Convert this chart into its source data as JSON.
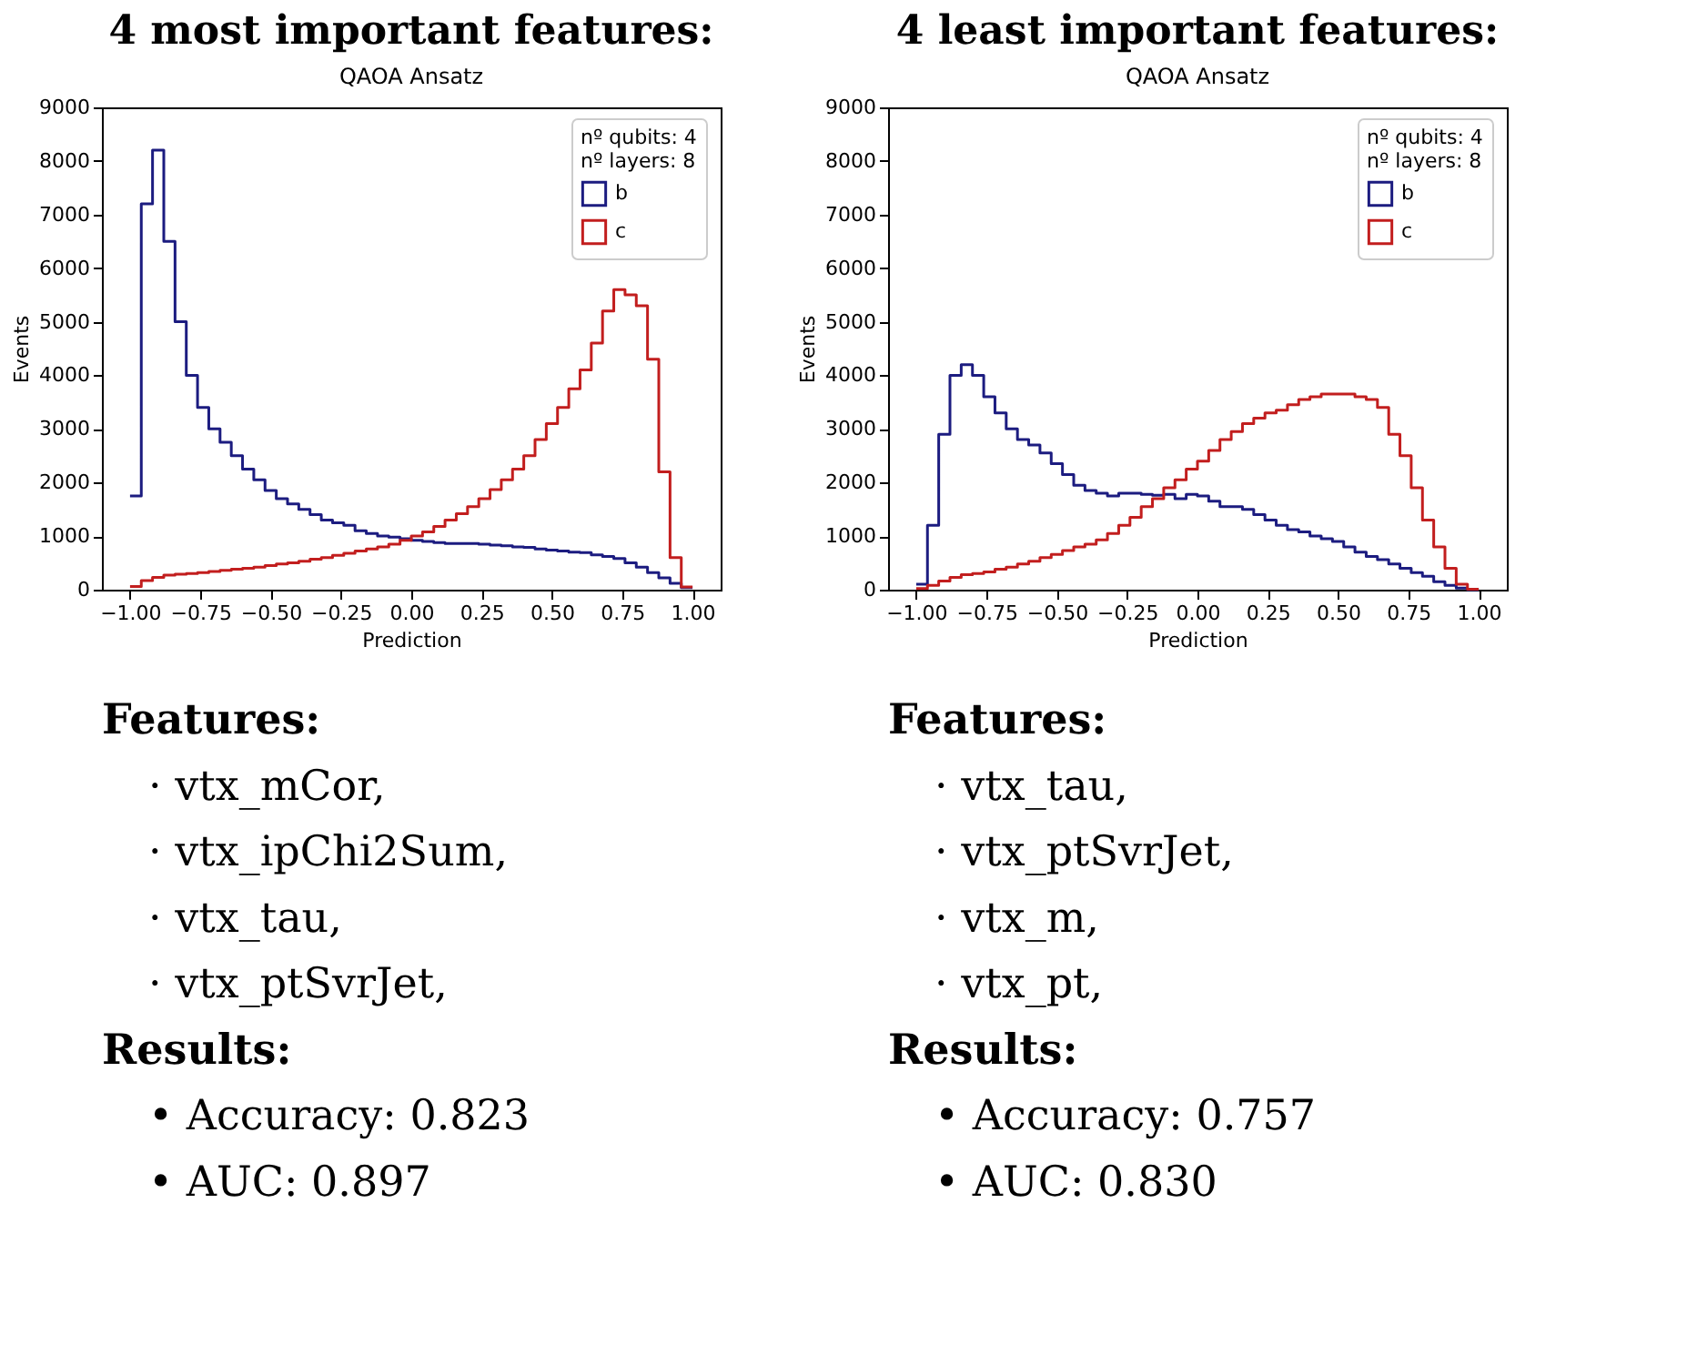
{
  "chart_data": [
    {
      "type": "histogram",
      "title": "4 most important features:",
      "subtitle": "QAOA Ansatz",
      "xlabel": "Prediction",
      "ylabel": "Events",
      "legend_title": "nº qubits: 4\nnº layers: 8",
      "bins": [
        -1.0,
        -0.96,
        -0.92,
        -0.88,
        -0.84,
        -0.8,
        -0.76,
        -0.72,
        -0.68,
        -0.64,
        -0.6,
        -0.56,
        -0.52,
        -0.48,
        -0.44,
        -0.4,
        -0.36,
        -0.32,
        -0.28,
        -0.24,
        -0.2,
        -0.16,
        -0.12,
        -0.08,
        -0.04,
        0.0,
        0.04,
        0.08,
        0.12,
        0.16,
        0.2,
        0.24,
        0.28,
        0.32,
        0.36,
        0.4,
        0.44,
        0.48,
        0.52,
        0.56,
        0.6,
        0.64,
        0.68,
        0.72,
        0.76,
        0.8,
        0.84,
        0.88,
        0.92,
        0.96,
        1.0
      ],
      "series": [
        {
          "name": "b",
          "color": "#1c1c80",
          "values": [
            1750,
            7200,
            8200,
            6500,
            5000,
            4000,
            3400,
            3000,
            2750,
            2500,
            2250,
            2050,
            1850,
            1700,
            1600,
            1500,
            1400,
            1300,
            1250,
            1200,
            1100,
            1050,
            1000,
            980,
            950,
            920,
            900,
            880,
            860,
            860,
            860,
            850,
            830,
            820,
            800,
            790,
            760,
            740,
            720,
            700,
            690,
            650,
            620,
            580,
            500,
            420,
            320,
            220,
            120,
            40
          ]
        },
        {
          "name": "c",
          "color": "#c21e1e",
          "values": [
            60,
            170,
            230,
            270,
            290,
            300,
            320,
            340,
            360,
            380,
            400,
            420,
            450,
            480,
            500,
            530,
            570,
            600,
            640,
            680,
            720,
            760,
            800,
            850,
            920,
            1000,
            1080,
            1180,
            1300,
            1420,
            1550,
            1700,
            1870,
            2050,
            2250,
            2500,
            2800,
            3100,
            3400,
            3750,
            4100,
            4600,
            5200,
            5600,
            5500,
            5300,
            4300,
            2200,
            600,
            50
          ]
        }
      ],
      "xlim": [
        -1.1,
        1.1
      ],
      "ylim": [
        0,
        9000
      ],
      "xticks": [
        {
          "value": -1.0,
          "label": "−1.00"
        },
        {
          "value": -0.75,
          "label": "−0.75"
        },
        {
          "value": -0.5,
          "label": "−0.50"
        },
        {
          "value": -0.25,
          "label": "−0.25"
        },
        {
          "value": 0.0,
          "label": "0.00"
        },
        {
          "value": 0.25,
          "label": "0.25"
        },
        {
          "value": 0.5,
          "label": "0.50"
        },
        {
          "value": 0.75,
          "label": "0.75"
        },
        {
          "value": 1.0,
          "label": "1.00"
        }
      ],
      "yticks": [
        0,
        1000,
        2000,
        3000,
        4000,
        5000,
        6000,
        7000,
        8000,
        9000
      ],
      "grid": false,
      "legend": "top right",
      "annotations": [
        "Features:",
        "· vtx_mCor,",
        "· vtx_ipChi2Sum,",
        "· vtx_tau,",
        "· vtx_ptSvrJet,",
        "Results:",
        "• Accuracy: 0.823",
        "• AUC: 0.897"
      ]
    },
    {
      "type": "histogram",
      "title": "4 least important features:",
      "subtitle": "QAOA Ansatz",
      "xlabel": "Prediction",
      "ylabel": "Events",
      "legend_title": "nº qubits: 4\nnº layers: 8",
      "bins": [
        -1.0,
        -0.96,
        -0.92,
        -0.88,
        -0.84,
        -0.8,
        -0.76,
        -0.72,
        -0.68,
        -0.64,
        -0.6,
        -0.56,
        -0.52,
        -0.48,
        -0.44,
        -0.4,
        -0.36,
        -0.32,
        -0.28,
        -0.24,
        -0.2,
        -0.16,
        -0.12,
        -0.08,
        -0.04,
        0.0,
        0.04,
        0.08,
        0.12,
        0.16,
        0.2,
        0.24,
        0.28,
        0.32,
        0.36,
        0.4,
        0.44,
        0.48,
        0.52,
        0.56,
        0.6,
        0.64,
        0.68,
        0.72,
        0.76,
        0.8,
        0.84,
        0.88,
        0.92,
        0.96,
        1.0
      ],
      "series": [
        {
          "name": "b",
          "color": "#1c1c80",
          "values": [
            100,
            1200,
            2900,
            4000,
            4200,
            4000,
            3600,
            3300,
            3000,
            2800,
            2700,
            2550,
            2350,
            2150,
            1950,
            1850,
            1800,
            1750,
            1800,
            1800,
            1780,
            1760,
            1780,
            1700,
            1780,
            1750,
            1650,
            1550,
            1550,
            1500,
            1400,
            1300,
            1200,
            1120,
            1080,
            1000,
            950,
            900,
            800,
            700,
            620,
            560,
            480,
            400,
            320,
            250,
            150,
            80,
            30,
            0
          ]
        },
        {
          "name": "c",
          "color": "#c21e1e",
          "values": [
            20,
            80,
            160,
            230,
            280,
            300,
            330,
            380,
            420,
            480,
            530,
            600,
            660,
            730,
            800,
            850,
            930,
            1050,
            1200,
            1350,
            1550,
            1700,
            1900,
            2050,
            2250,
            2400,
            2600,
            2800,
            2950,
            3100,
            3200,
            3300,
            3350,
            3450,
            3550,
            3600,
            3650,
            3650,
            3650,
            3600,
            3550,
            3400,
            2900,
            2500,
            1900,
            1300,
            800,
            400,
            100,
            10
          ]
        }
      ],
      "xlim": [
        -1.1,
        1.1
      ],
      "ylim": [
        0,
        9000
      ],
      "xticks": [
        {
          "value": -1.0,
          "label": "−1.00"
        },
        {
          "value": -0.75,
          "label": "−0.75"
        },
        {
          "value": -0.5,
          "label": "−0.50"
        },
        {
          "value": -0.25,
          "label": "−0.25"
        },
        {
          "value": 0.0,
          "label": "0.00"
        },
        {
          "value": 0.25,
          "label": "0.25"
        },
        {
          "value": 0.5,
          "label": "0.50"
        },
        {
          "value": 0.75,
          "label": "0.75"
        },
        {
          "value": 1.0,
          "label": "1.00"
        }
      ],
      "yticks": [
        0,
        1000,
        2000,
        3000,
        4000,
        5000,
        6000,
        7000,
        8000,
        9000
      ],
      "grid": false,
      "legend": "top right",
      "annotations": [
        "Features:",
        "· vtx_tau,",
        "· vtx_ptSvrJet,",
        "· vtx_m,",
        "· vtx_pt,",
        "Results:",
        "• Accuracy: 0.757",
        "• AUC: 0.830"
      ]
    }
  ]
}
